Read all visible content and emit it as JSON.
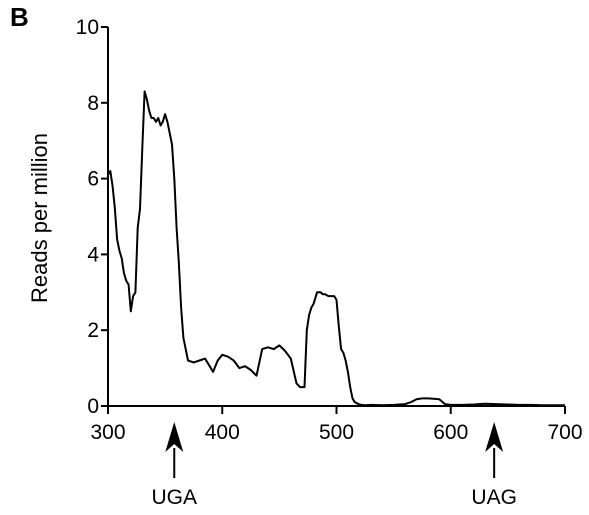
{
  "panel_label": "B",
  "chart_data": {
    "type": "line",
    "title": "",
    "xlabel": "",
    "ylabel": "Reads per million",
    "xlim": [
      300,
      700
    ],
    "ylim": [
      0,
      10
    ],
    "x_ticks": [
      300,
      400,
      500,
      600,
      700
    ],
    "y_ticks": [
      0,
      2,
      4,
      6,
      8,
      10
    ],
    "grid": false,
    "legend": "none",
    "line_color": "#000000",
    "series": [
      {
        "x": [
          300,
          302,
          304,
          306,
          308,
          310,
          312,
          314,
          316,
          318,
          320,
          322,
          324,
          326,
          328,
          330,
          332,
          334,
          336,
          338,
          340,
          342,
          344,
          346,
          348,
          350,
          352,
          354,
          356,
          358,
          360,
          362,
          364,
          366,
          368,
          370,
          375,
          380,
          385,
          388,
          392,
          396,
          400,
          405,
          410,
          415,
          420,
          425,
          430,
          435,
          440,
          445,
          450,
          455,
          460,
          465,
          468,
          472,
          474,
          476,
          478,
          480,
          483,
          486,
          488,
          490,
          493,
          496,
          498,
          500,
          502,
          504,
          506,
          508,
          510,
          512,
          514,
          516,
          520,
          525,
          530,
          540,
          550,
          560,
          565,
          570,
          575,
          580,
          585,
          590,
          595,
          600,
          610,
          620,
          630,
          640,
          650,
          660,
          670,
          680,
          690,
          700
        ],
        "y": [
          6.1,
          6.2,
          5.8,
          5.2,
          4.4,
          4.1,
          3.9,
          3.5,
          3.3,
          3.2,
          2.5,
          2.9,
          3.0,
          4.7,
          5.2,
          6.8,
          8.3,
          8.1,
          7.8,
          7.6,
          7.6,
          7.5,
          7.6,
          7.4,
          7.5,
          7.7,
          7.5,
          7.2,
          6.9,
          6.0,
          4.7,
          3.8,
          2.6,
          1.8,
          1.5,
          1.2,
          1.15,
          1.2,
          1.25,
          1.1,
          0.9,
          1.2,
          1.35,
          1.3,
          1.2,
          1.0,
          1.05,
          0.95,
          0.8,
          1.5,
          1.55,
          1.5,
          1.6,
          1.45,
          1.25,
          0.6,
          0.5,
          0.5,
          2.0,
          2.4,
          2.6,
          2.7,
          3.0,
          3.0,
          2.95,
          2.95,
          2.9,
          2.9,
          2.9,
          2.8,
          2.1,
          1.5,
          1.4,
          1.2,
          0.9,
          0.5,
          0.2,
          0.1,
          0.04,
          0.02,
          0.03,
          0.02,
          0.03,
          0.05,
          0.1,
          0.18,
          0.2,
          0.2,
          0.19,
          0.18,
          0.05,
          0.03,
          0.03,
          0.04,
          0.06,
          0.05,
          0.04,
          0.03,
          0.03,
          0.02,
          0.02,
          0.02
        ]
      }
    ],
    "annotations": [
      {
        "text": "UGA",
        "x": 358
      },
      {
        "text": "UAG",
        "x": 638
      }
    ]
  }
}
